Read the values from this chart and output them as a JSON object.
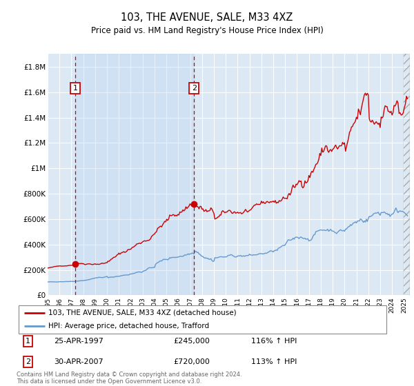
{
  "title": "103, THE AVENUE, SALE, M33 4XZ",
  "subtitle": "Price paid vs. HM Land Registry's House Price Index (HPI)",
  "ylabel_ticks": [
    "£0",
    "£200K",
    "£400K",
    "£600K",
    "£800K",
    "£1M",
    "£1.2M",
    "£1.4M",
    "£1.6M",
    "£1.8M"
  ],
  "ytick_values": [
    0,
    200000,
    400000,
    600000,
    800000,
    1000000,
    1200000,
    1400000,
    1600000,
    1800000
  ],
  "ylim": [
    0,
    1900000
  ],
  "xmin": 1995.0,
  "xmax": 2025.5,
  "plot_bg": "#dce9f5",
  "red_line_color": "#cc0000",
  "blue_line_color": "#6699cc",
  "transaction1": {
    "year": 1997.32,
    "price": 245000,
    "label": "1",
    "date": "25-APR-1997",
    "hpi_pct": "116%"
  },
  "transaction2": {
    "year": 2007.33,
    "price": 720000,
    "label": "2",
    "date": "30-APR-2007",
    "hpi_pct": "113%"
  },
  "legend_label_red": "103, THE AVENUE, SALE, M33 4XZ (detached house)",
  "legend_label_blue": "HPI: Average price, detached house, Trafford",
  "footer": "Contains HM Land Registry data © Crown copyright and database right 2024.\nThis data is licensed under the Open Government Licence v3.0.",
  "table_row1": [
    "1",
    "25-APR-1997",
    "£245,000",
    "116% ↑ HPI"
  ],
  "table_row2": [
    "2",
    "30-APR-2007",
    "£720,000",
    "113% ↑ HPI"
  ]
}
